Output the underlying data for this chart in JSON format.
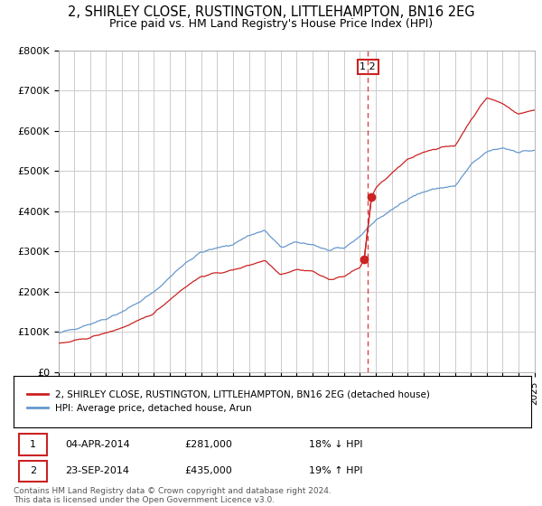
{
  "title": "2, SHIRLEY CLOSE, RUSTINGTON, LITTLEHAMPTON, BN16 2EG",
  "subtitle": "Price paid vs. HM Land Registry's House Price Index (HPI)",
  "title_fontsize": 10.5,
  "subtitle_fontsize": 9,
  "x_start_year": 1995,
  "x_end_year": 2025,
  "y_min": 0,
  "y_max": 800000,
  "y_ticks": [
    0,
    100000,
    200000,
    300000,
    400000,
    500000,
    600000,
    700000,
    800000
  ],
  "y_tick_labels": [
    "£0",
    "£100K",
    "£200K",
    "£300K",
    "£400K",
    "£500K",
    "£600K",
    "£700K",
    "£800K"
  ],
  "hpi_color": "#6699cc",
  "price_color": "#cc2222",
  "vline_color": "#dd4444",
  "dot_color": "#cc2222",
  "background_color": "#ffffff",
  "grid_color": "#cccccc",
  "transaction1_date": 2014.27,
  "transaction1_price": 281000,
  "transaction2_date": 2014.73,
  "transaction2_price": 435000,
  "legend_label_price": "2, SHIRLEY CLOSE, RUSTINGTON, LITTLEHAMPTON, BN16 2EG (detached house)",
  "legend_label_hpi": "HPI: Average price, detached house, Arun",
  "table_row1": [
    "1",
    "04-APR-2014",
    "£281,000",
    "18% ↓ HPI"
  ],
  "table_row2": [
    "2",
    "23-SEP-2014",
    "£435,000",
    "19% ↑ HPI"
  ],
  "footnote": "Contains HM Land Registry data © Crown copyright and database right 2024.\nThis data is licensed under the Open Government Licence v3.0.",
  "hpi_anchors_x": [
    1995,
    1996,
    1997,
    1998,
    1999,
    2000,
    2001,
    2002,
    2003,
    2004,
    2005,
    2006,
    2007,
    2008,
    2009,
    2010,
    2011,
    2012,
    2013,
    2014,
    2015,
    2016,
    2017,
    2018,
    2019,
    2020,
    2021,
    2022,
    2023,
    2024,
    2025
  ],
  "hpi_anchors_y": [
    95000,
    108000,
    120000,
    133000,
    150000,
    172000,
    198000,
    235000,
    272000,
    298000,
    308000,
    318000,
    340000,
    352000,
    310000,
    322000,
    318000,
    302000,
    308000,
    338000,
    378000,
    402000,
    432000,
    448000,
    458000,
    462000,
    515000,
    548000,
    558000,
    548000,
    552000
  ],
  "price_anchors_x": [
    1995,
    1996,
    1997,
    1998,
    1999,
    2000,
    2001,
    2002,
    2003,
    2004,
    2005,
    2006,
    2007,
    2008,
    2009,
    2010,
    2011,
    2012,
    2013,
    2014,
    2014.27,
    2014.73,
    2015,
    2016,
    2017,
    2018,
    2019,
    2020,
    2021,
    2022,
    2023,
    2024,
    2025
  ],
  "price_anchors_y": [
    70000,
    77000,
    86000,
    97000,
    110000,
    126000,
    146000,
    180000,
    212000,
    238000,
    246000,
    253000,
    266000,
    278000,
    243000,
    255000,
    251000,
    230000,
    238000,
    260000,
    281000,
    435000,
    458000,
    494000,
    528000,
    548000,
    558000,
    563000,
    628000,
    683000,
    668000,
    642000,
    652000
  ]
}
